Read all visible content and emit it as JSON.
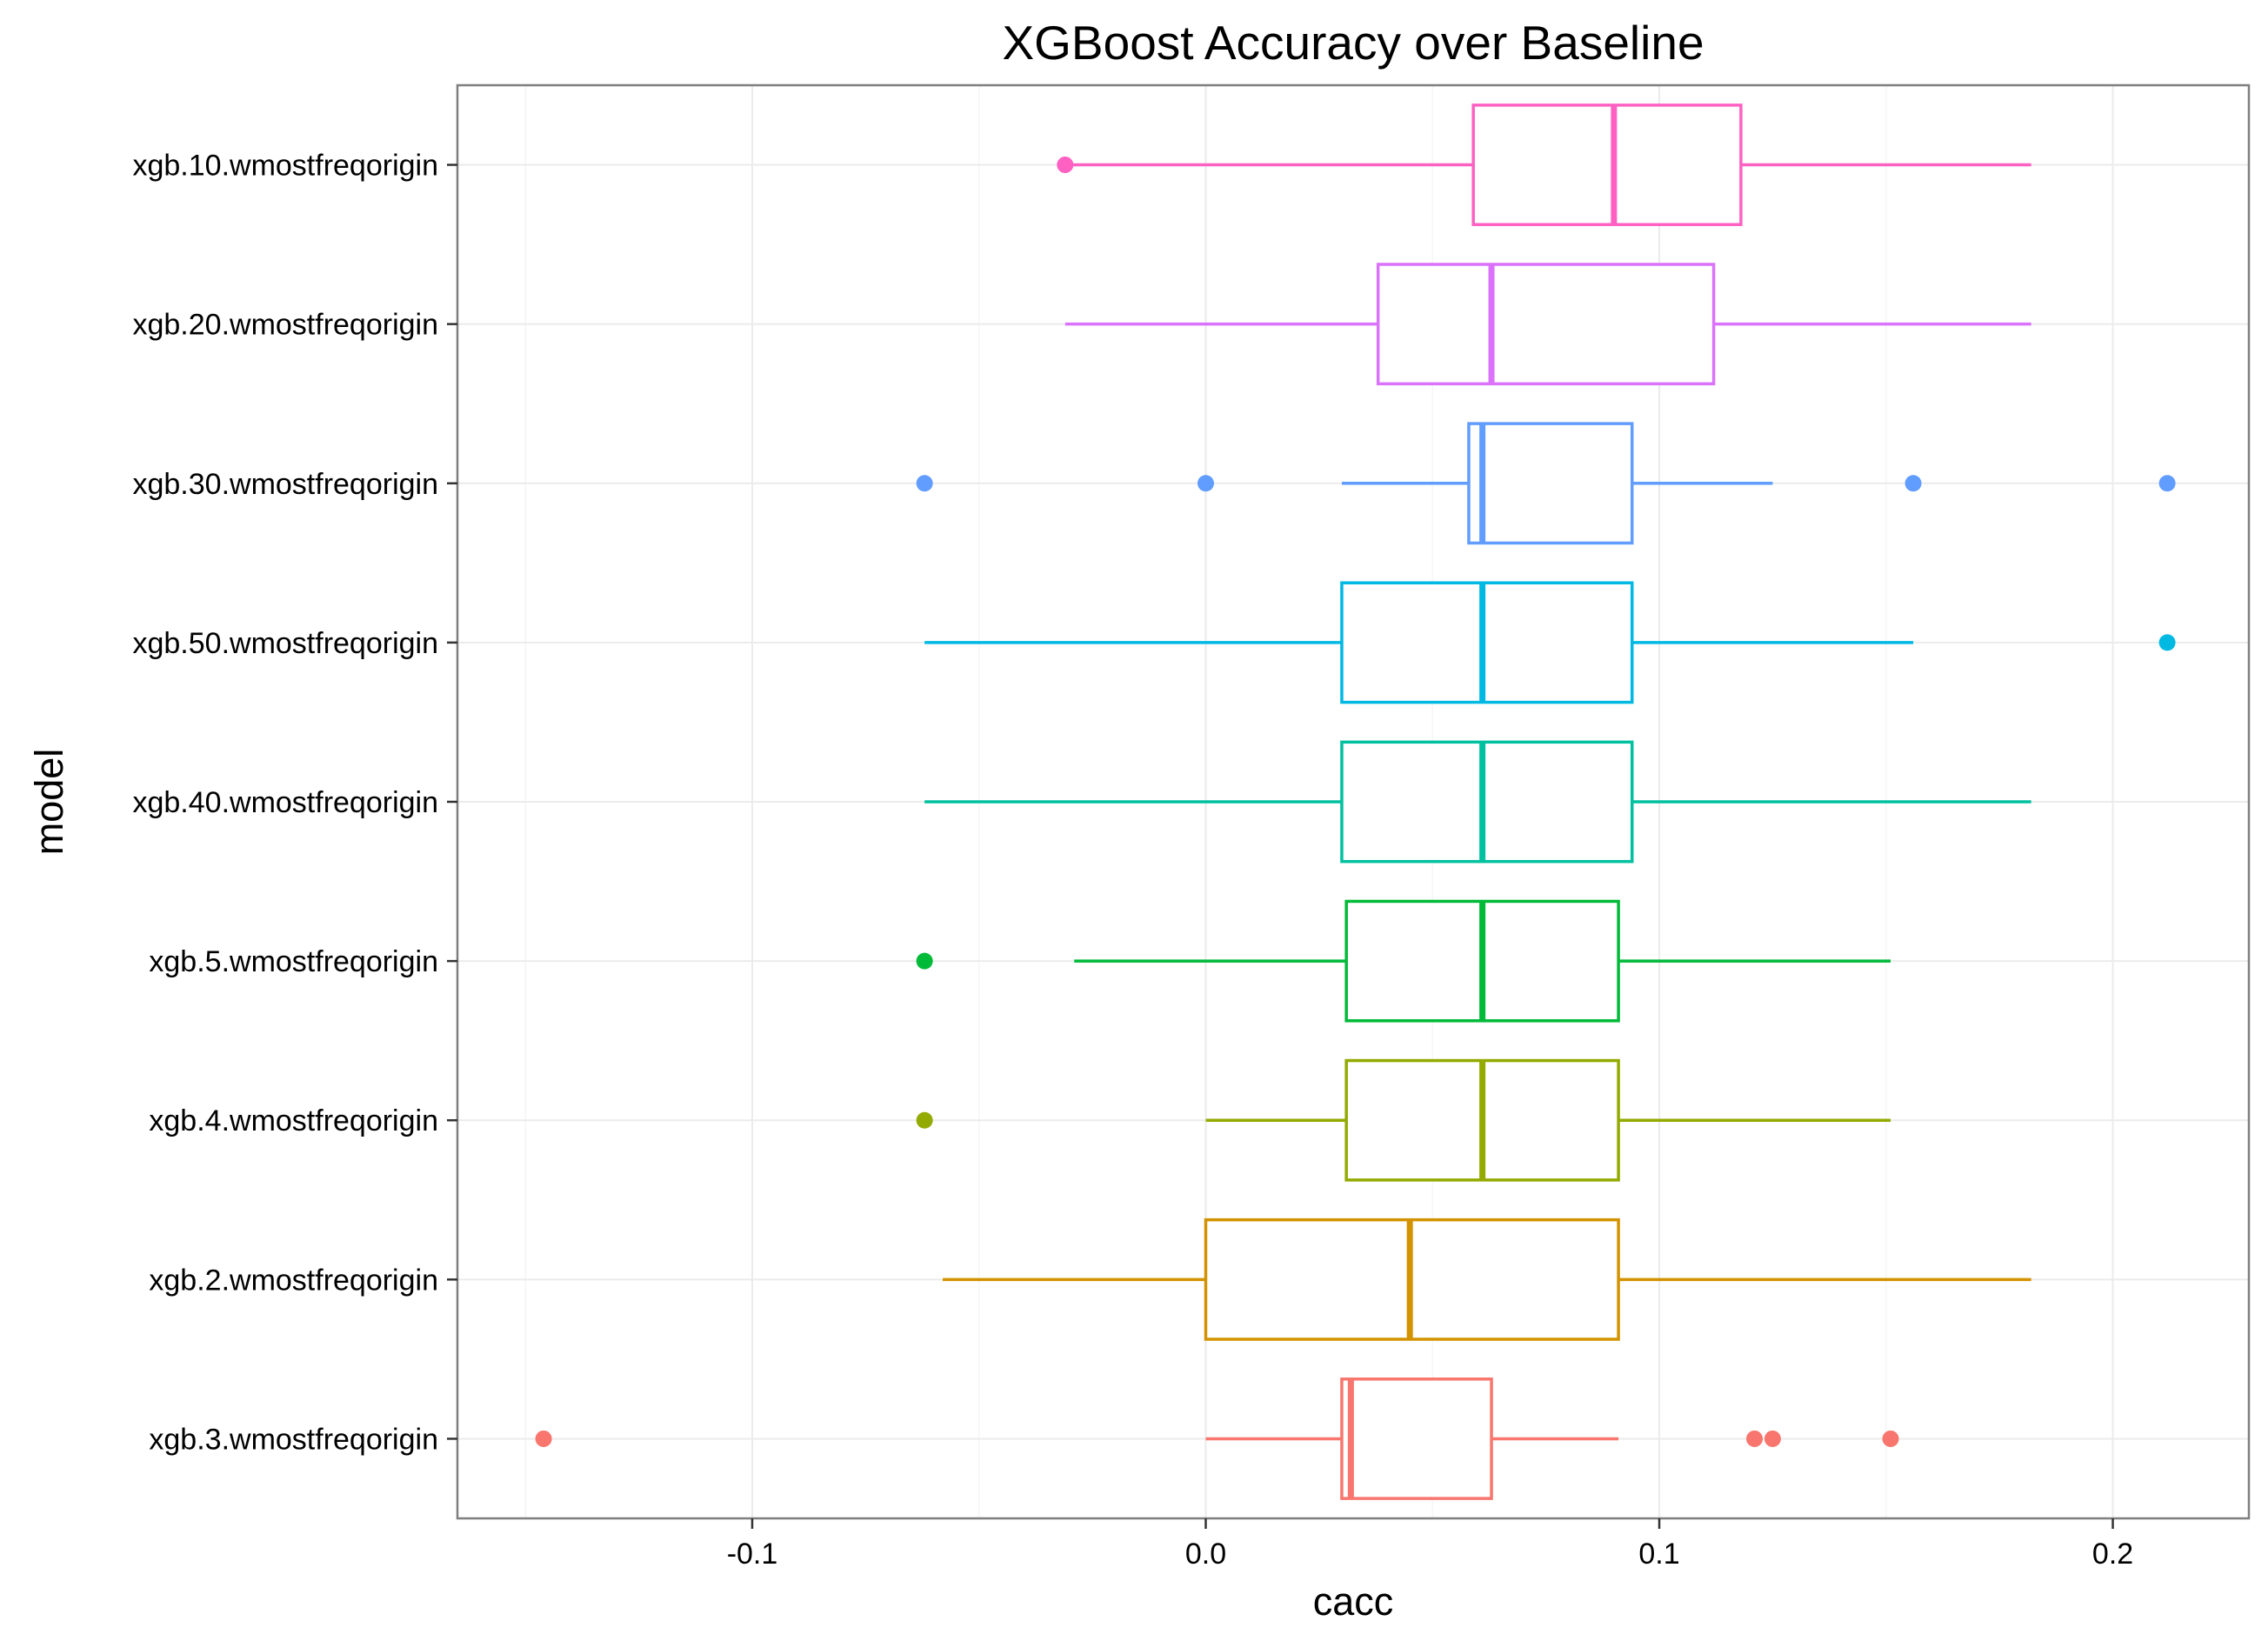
{
  "chart_data": {
    "type": "boxplot",
    "title": "XGBoost Accuracy over Baseline",
    "xlabel": "cacc",
    "ylabel": "model",
    "xlim": [
      -0.165,
      0.23
    ],
    "x_ticks": [
      -0.1,
      0.0,
      0.1,
      0.2
    ],
    "x_tick_labels": [
      "-0.1",
      "0.0",
      "0.1",
      "0.2"
    ],
    "x_minor_ticks": [
      -0.15,
      -0.05,
      0.05,
      0.15
    ],
    "grid": true,
    "legend": "none",
    "series": [
      {
        "category": "xgb.10.wmostfreqorigin",
        "color": "#FF61C3",
        "whisker_low": -0.031,
        "q1": 0.059,
        "median": 0.09,
        "q3": 0.118,
        "whisker_high": 0.182,
        "outliers": [
          -0.031
        ]
      },
      {
        "category": "xgb.20.wmostfreqorigin",
        "color": "#DB72FB",
        "whisker_low": -0.031,
        "q1": 0.038,
        "median": 0.063,
        "q3": 0.112,
        "whisker_high": 0.182,
        "outliers": []
      },
      {
        "category": "xgb.30.wmostfreqorigin",
        "color": "#619CFF",
        "whisker_low": 0.03,
        "q1": 0.058,
        "median": 0.061,
        "q3": 0.094,
        "whisker_high": 0.125,
        "outliers": [
          -0.062,
          0.0,
          0.156,
          0.212
        ]
      },
      {
        "category": "xgb.50.wmostfreqorigin",
        "color": "#00B9E3",
        "whisker_low": -0.062,
        "q1": 0.03,
        "median": 0.061,
        "q3": 0.094,
        "whisker_high": 0.156,
        "outliers": [
          0.212
        ]
      },
      {
        "category": "xgb.40.wmostfreqorigin",
        "color": "#00C19F",
        "whisker_low": -0.062,
        "q1": 0.03,
        "median": 0.061,
        "q3": 0.094,
        "whisker_high": 0.182,
        "outliers": []
      },
      {
        "category": "xgb.5.wmostfreqorigin",
        "color": "#00BA38",
        "whisker_low": -0.029,
        "q1": 0.031,
        "median": 0.061,
        "q3": 0.091,
        "whisker_high": 0.151,
        "outliers": [
          -0.062
        ]
      },
      {
        "category": "xgb.4.wmostfreqorigin",
        "color": "#93AA00",
        "whisker_low": 0.0,
        "q1": 0.031,
        "median": 0.061,
        "q3": 0.091,
        "whisker_high": 0.151,
        "outliers": [
          -0.062
        ]
      },
      {
        "category": "xgb.2.wmostfreqorigin",
        "color": "#D39200",
        "whisker_low": -0.058,
        "q1": 0.0,
        "median": 0.045,
        "q3": 0.091,
        "whisker_high": 0.182,
        "outliers": []
      },
      {
        "category": "xgb.3.wmostfreqorigin",
        "color": "#F8766D",
        "whisker_low": 0.0,
        "q1": 0.03,
        "median": 0.032,
        "q3": 0.063,
        "whisker_high": 0.091,
        "outliers": [
          -0.146,
          0.121,
          0.125,
          0.151
        ]
      }
    ]
  }
}
